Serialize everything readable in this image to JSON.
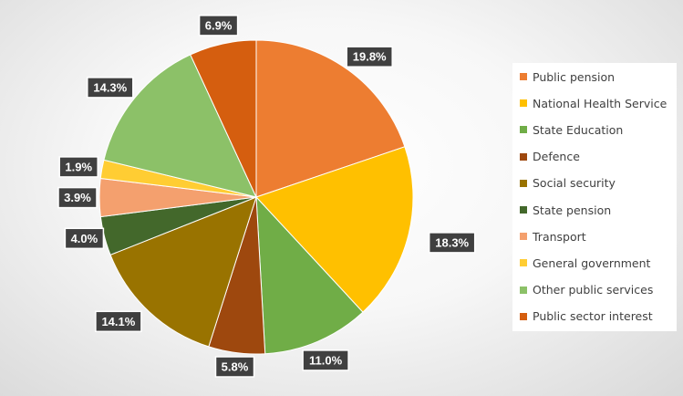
{
  "chart_data": {
    "type": "pie",
    "title": "",
    "legend_position": "right",
    "slices": [
      {
        "name": "Public pension",
        "value": 19.8,
        "label": "19.8%",
        "color": "#ED7D31"
      },
      {
        "name": "National Health Service",
        "value": 18.3,
        "label": "18.3%",
        "color": "#FFC000"
      },
      {
        "name": "State Education",
        "value": 11.0,
        "label": "11.0%",
        "color": "#70AD47"
      },
      {
        "name": "Defence",
        "value": 5.8,
        "label": "5.8%",
        "color": "#9E480E"
      },
      {
        "name": "Social security",
        "value": 14.1,
        "label": "14.1%",
        "color": "#997300"
      },
      {
        "name": "State pension",
        "value": 4.0,
        "label": "4.0%",
        "color": "#43682B"
      },
      {
        "name": "Transport",
        "value": 3.9,
        "label": "3.9%",
        "color": "#F4A06E"
      },
      {
        "name": "General government",
        "value": 1.9,
        "label": "1.9%",
        "color": "#FFCD33"
      },
      {
        "name": "Other public services",
        "value": 14.3,
        "label": "14.3%",
        "color": "#8CC168"
      },
      {
        "name": "Public sector interest",
        "value": 6.9,
        "label": "6.9%",
        "color": "#D55E0F"
      }
    ]
  }
}
